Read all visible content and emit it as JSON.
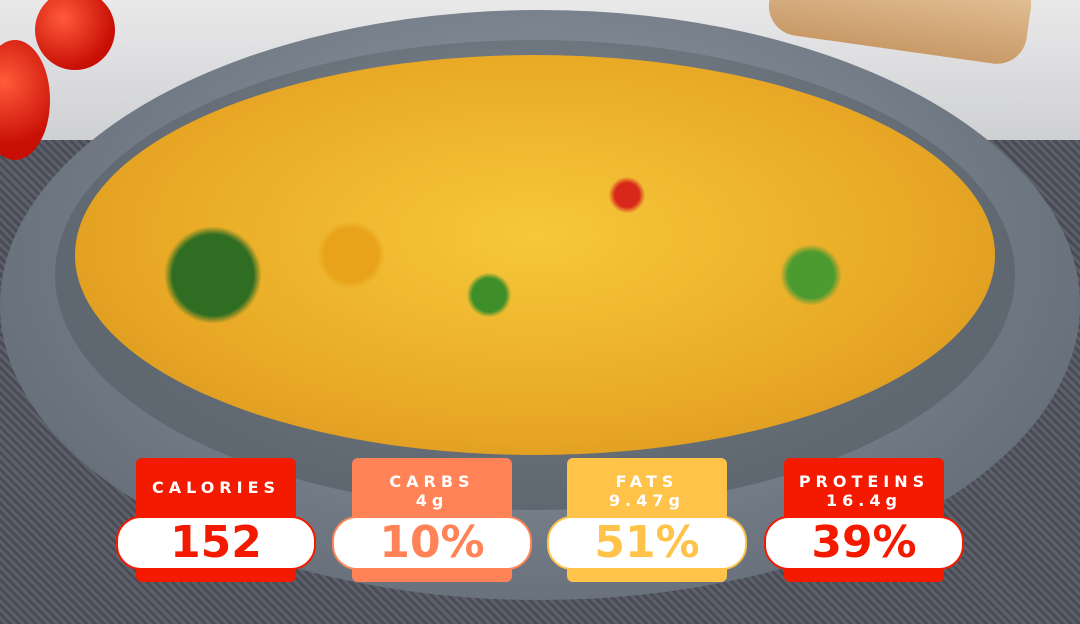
{
  "colors": {
    "calories": "#f31a00",
    "carbs": "#ff8356",
    "fats": "#ffc34a",
    "proteins": "#f31a00"
  },
  "badges": [
    {
      "label": "CALORIES",
      "sub": "",
      "value": "152"
    },
    {
      "label": "CARBS",
      "sub": "4g",
      "value": "10%"
    },
    {
      "label": "FATS",
      "sub": "9.47g",
      "value": "51%"
    },
    {
      "label": "PROTEINS",
      "sub": "16.4g",
      "value": "39%"
    }
  ]
}
